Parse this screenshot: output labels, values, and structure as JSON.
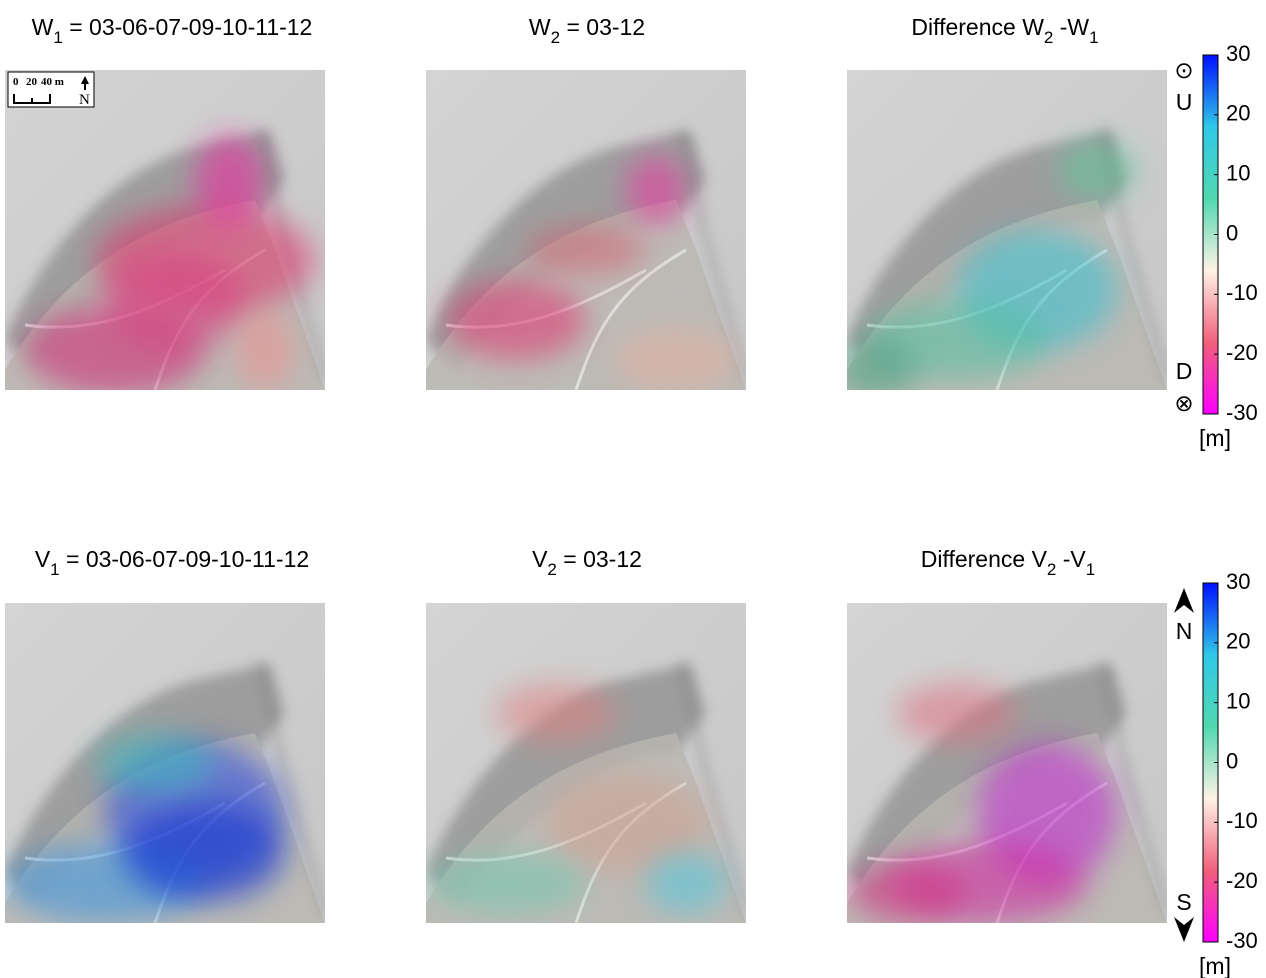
{
  "panels": [
    {
      "title": [
        "W",
        "1",
        " = 03-06-07-09-10-11-12"
      ]
    },
    {
      "title": [
        "W",
        "2",
        " = 03-12"
      ]
    },
    {
      "title": [
        "Difference W",
        "2",
        " -W",
        "1"
      ]
    },
    {
      "title": [
        "V",
        "1",
        " = 03-06-07-09-10-11-12"
      ]
    },
    {
      "title": [
        "V",
        "2",
        " = 03-12"
      ]
    },
    {
      "title": [
        "Difference V",
        "2",
        " -V",
        "1"
      ]
    }
  ],
  "scale_bar": {
    "labels": [
      "0",
      "20",
      "40 m"
    ],
    "north": "N"
  },
  "colormap": [
    "#ff00ff",
    "#f0607a",
    "#fff2e6",
    "#50d8b0",
    "#30c8e8",
    "#0010ff"
  ],
  "colorbars": [
    {
      "lim": [
        -30,
        30
      ],
      "ticks": [
        30,
        20,
        10,
        0,
        -10,
        -20,
        -30
      ],
      "top_symbol": "⊙",
      "top_label": "U",
      "bottom_label": "D",
      "bottom_symbol": "⊗",
      "unit": "[m]"
    },
    {
      "lim": [
        -30,
        30
      ],
      "ticks": [
        30,
        20,
        10,
        0,
        -10,
        -20,
        -30
      ],
      "top_label": "N",
      "bottom_label": "S",
      "unit": "[m]"
    }
  ]
}
